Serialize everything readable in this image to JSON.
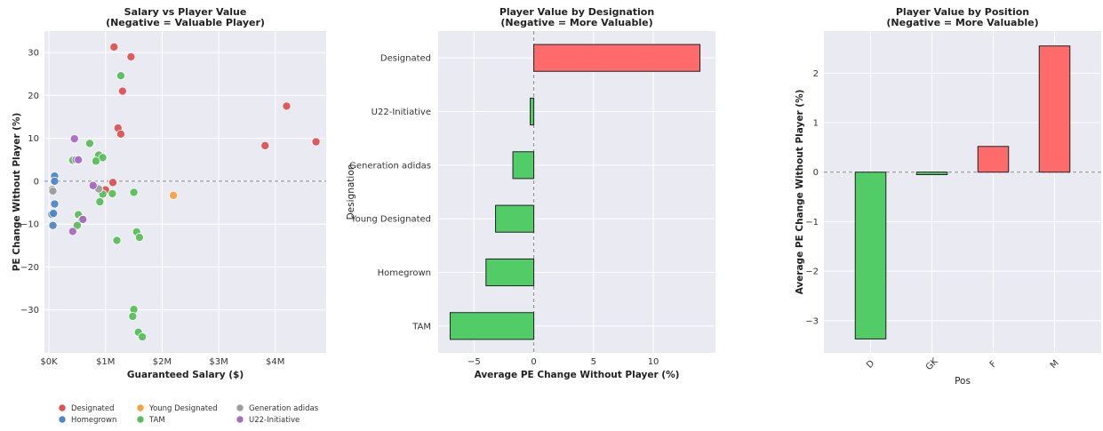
{
  "colors": {
    "plot_bg": "#eaeaf2",
    "grid": "#ffffff",
    "Designated": "#e05252",
    "Homegrown": "#4f86c6",
    "Young Designated": "#f5a03c",
    "TAM": "#5abf5a",
    "Generation adidas": "#9e9e9e",
    "U22-Initiative": "#a86cc1",
    "bar_negative": "#52cc66",
    "bar_positive": "#ff6b6b"
  },
  "chart_data": [
    {
      "type": "scatter",
      "title": "Salary vs Player Value",
      "subtitle": "(Negative = Valuable Player)",
      "xlabel": "Guaranteed Salary ($)",
      "ylabel": "PE Change Without Player (%)",
      "xlim": [
        -0.08,
        4.9
      ],
      "ylim": [
        -40,
        35
      ],
      "xticks": [
        0,
        1,
        2,
        3,
        4
      ],
      "xtick_labels": [
        "$0K",
        "$1M",
        "$2M",
        "$3M",
        "$4M"
      ],
      "yticks": [
        -30,
        -20,
        -10,
        0,
        10,
        20,
        30
      ],
      "reference_line_y": 0,
      "legend_position": "bottom",
      "legend": [
        "Designated",
        "Young Designated",
        "Generation adidas",
        "Homegrown",
        "TAM",
        "U22-Initiative"
      ],
      "series": [
        {
          "name": "Designated",
          "points": [
            [
              1.15,
              31.3
            ],
            [
              1.45,
              29.0
            ],
            [
              1.3,
              21.0
            ],
            [
              1.22,
              12.4
            ],
            [
              1.27,
              11.0
            ],
            [
              1.0,
              -2.0
            ],
            [
              1.13,
              -0.3
            ],
            [
              4.2,
              17.5
            ],
            [
              3.82,
              8.3
            ],
            [
              4.72,
              9.2
            ]
          ]
        },
        {
          "name": "Homegrown",
          "points": [
            [
              0.1,
              1.2
            ],
            [
              0.1,
              0.0
            ],
            [
              0.1,
              -5.3
            ],
            [
              0.05,
              -7.7
            ],
            [
              0.08,
              -7.5
            ],
            [
              0.07,
              -10.3
            ]
          ]
        },
        {
          "name": "Young Designated",
          "points": [
            [
              2.2,
              -3.3
            ]
          ]
        },
        {
          "name": "TAM",
          "points": [
            [
              1.27,
              24.6
            ],
            [
              0.72,
              8.8
            ],
            [
              0.88,
              6.1
            ],
            [
              0.95,
              5.5
            ],
            [
              0.83,
              4.7
            ],
            [
              0.42,
              4.9
            ],
            [
              0.78,
              -0.9
            ],
            [
              0.9,
              -4.8
            ],
            [
              0.95,
              -3.0
            ],
            [
              1.12,
              -2.9
            ],
            [
              1.5,
              -2.6
            ],
            [
              0.52,
              -7.8
            ],
            [
              0.58,
              -9.0
            ],
            [
              0.5,
              -10.3
            ],
            [
              1.2,
              -13.8
            ],
            [
              1.55,
              -11.8
            ],
            [
              1.6,
              -13.1
            ],
            [
              1.5,
              -29.9
            ],
            [
              1.48,
              -31.5
            ],
            [
              1.58,
              -35.2
            ],
            [
              1.65,
              -36.3
            ]
          ]
        },
        {
          "name": "Generation adidas",
          "points": [
            [
              0.06,
              -1.9
            ],
            [
              0.07,
              -2.3
            ],
            [
              0.82,
              -1.3
            ],
            [
              0.88,
              -1.8
            ]
          ]
        },
        {
          "name": "U22-Initiative",
          "points": [
            [
              0.45,
              9.9
            ],
            [
              0.48,
              5.0
            ],
            [
              0.52,
              5.0
            ],
            [
              0.78,
              -1.0
            ],
            [
              0.6,
              -8.9
            ],
            [
              0.42,
              -11.7
            ]
          ]
        }
      ]
    },
    {
      "type": "bar",
      "orientation": "horizontal",
      "title": "Player Value by Designation",
      "subtitle": "(Negative = More Valuable)",
      "xlabel": "Average PE Change Without Player (%)",
      "ylabel": "Designation",
      "xlim": [
        -8,
        15.2
      ],
      "xticks": [
        -5,
        0,
        5,
        10
      ],
      "xtick_labels": [
        "−5",
        "0",
        "5",
        "10"
      ],
      "reference_line_x": 0,
      "categories": [
        "Designated",
        "U22-Initiative",
        "Generation adidas",
        "Young Designated",
        "Homegrown",
        "TAM"
      ],
      "values": [
        13.9,
        -0.3,
        -1.75,
        -3.2,
        -4.0,
        -7.0
      ]
    },
    {
      "type": "bar",
      "title": "Player Value by Position",
      "subtitle": "(Negative = More Valuable)",
      "xlabel": "Pos",
      "ylabel": "Average PE Change Without Player (%)",
      "ylim": [
        -3.65,
        2.85
      ],
      "yticks": [
        -3,
        -2,
        -1,
        0,
        1,
        2
      ],
      "ytick_labels": [
        "−3",
        "−2",
        "−1",
        "0",
        "1",
        "2"
      ],
      "reference_line_y": 0,
      "categories": [
        "D",
        "GK",
        "F",
        "M"
      ],
      "values": [
        -3.37,
        -0.05,
        0.52,
        2.55
      ]
    }
  ]
}
